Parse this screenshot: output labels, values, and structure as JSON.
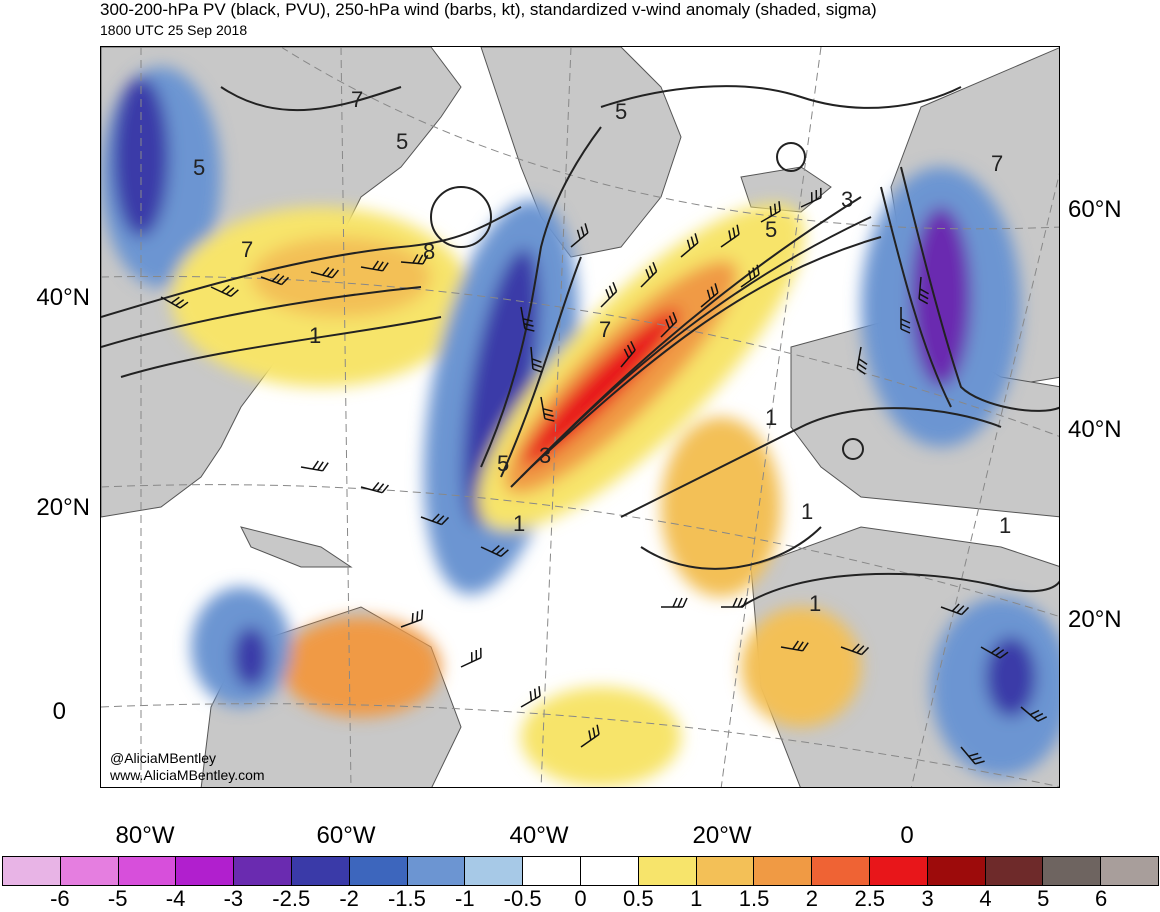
{
  "header": {
    "title": "300-200-hPa PV (black, PVU), 250-hPa wind (barbs, kt), standardized v-wind anomaly (shaded, sigma)",
    "subtitle": "1800 UTC 25 Sep 2018"
  },
  "axes": {
    "lat_left": [
      "40°N",
      "20°N",
      "0"
    ],
    "lat_right": [
      "60°N",
      "40°N",
      "20°N"
    ],
    "lon_bottom": [
      "80°W",
      "60°W",
      "40°W",
      "20°W",
      "0"
    ]
  },
  "contour_labels": [
    "5",
    "7",
    "5",
    "5",
    "7",
    "8",
    "1",
    "1",
    "7",
    "5",
    "3",
    "1",
    "1",
    "5",
    "3",
    "1",
    "1",
    "7"
  ],
  "credit": {
    "handle": "@AliciaMBentley",
    "website": "www.AliciaMBentley.com"
  },
  "colorbar": {
    "ticks": [
      "-6",
      "-5",
      "-4",
      "-3",
      "-2.5",
      "-2",
      "-1.5",
      "-1",
      "-0.5",
      "0",
      "0.5",
      "1",
      "1.5",
      "2",
      "2.5",
      "3",
      "4",
      "5",
      "6"
    ],
    "colors": [
      "#e8b4e6",
      "#e57ee0",
      "#d74fdb",
      "#b11fce",
      "#6a2bb0",
      "#3a3aa8",
      "#3d66bd",
      "#6c95d2",
      "#a7c9e7",
      "#ffffff",
      "#ffffff",
      "#f7e46b",
      "#f3c057",
      "#f09a44",
      "#ef6334",
      "#e8161a",
      "#9d0b0b",
      "#6e2a2a",
      "#6e6460",
      "#a89e9b"
    ]
  },
  "colors": {
    "land": "#c8c8c8",
    "ocean": "#ffffff",
    "contour": "#222222",
    "grid": "#888888"
  }
}
